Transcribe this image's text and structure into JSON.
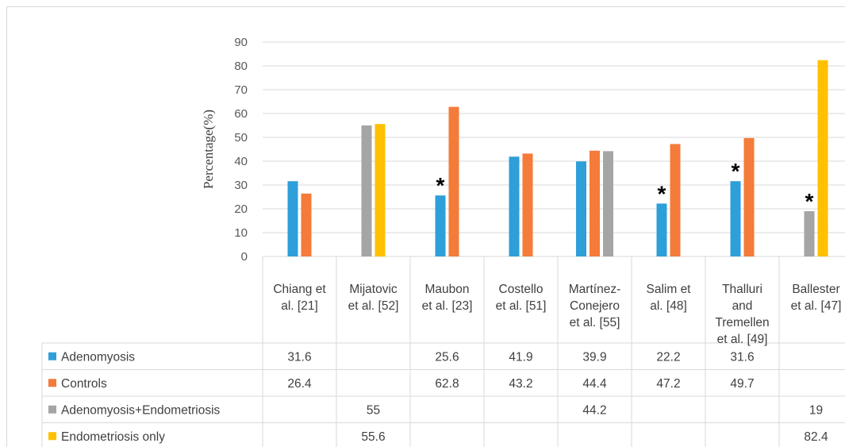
{
  "chart_data": {
    "type": "bar",
    "ylabel": "Percentage(%)",
    "ylim": [
      0,
      90
    ],
    "ytick_step": 10,
    "categories": [
      [
        "Chiang et",
        "al. [21]"
      ],
      [
        "Mijatovic",
        "et al. [52]"
      ],
      [
        "Maubon",
        "et al. [23]"
      ],
      [
        "Costello",
        "et al. [51]"
      ],
      [
        "Martínez-",
        "Conejero",
        "et al. [55]"
      ],
      [
        "Salim et",
        "al. [48]"
      ],
      [
        "Thalluri",
        "and",
        "Tremellen",
        "et al. [49]"
      ],
      [
        "Ballester",
        "et al. [47]"
      ]
    ],
    "series": [
      {
        "name": "Adenomyosis",
        "color": "#2E9FD9",
        "values": [
          31.6,
          null,
          25.6,
          41.9,
          39.9,
          22.2,
          31.6,
          null
        ]
      },
      {
        "name": "Controls",
        "color": "#F47B3A",
        "values": [
          26.4,
          null,
          62.8,
          43.2,
          44.4,
          47.2,
          49.7,
          null
        ]
      },
      {
        "name": "Adenomyosis+Endometriosis",
        "color": "#A5A5A5",
        "values": [
          null,
          55,
          null,
          null,
          44.2,
          null,
          null,
          19
        ]
      },
      {
        "name": "Endometriosis only",
        "color": "#FFC000",
        "values": [
          null,
          55.6,
          null,
          null,
          null,
          null,
          null,
          82.4
        ]
      }
    ],
    "table_values": [
      [
        "31.6",
        "",
        "25.6",
        "41.9",
        "39.9",
        "22.2",
        "31.6",
        ""
      ],
      [
        "26.4",
        "",
        "62.8",
        "43.2",
        "44.4",
        "47.2",
        "49.7",
        ""
      ],
      [
        "",
        "55",
        "",
        "",
        "44.2",
        "",
        "",
        "19"
      ],
      [
        "",
        "55.6",
        "",
        "",
        "",
        "",
        "",
        "82.4"
      ]
    ],
    "significance_marks": [
      {
        "category_index": 2,
        "series_index": 0,
        "symbol": "*"
      },
      {
        "category_index": 5,
        "series_index": 0,
        "symbol": "*"
      },
      {
        "category_index": 6,
        "series_index": 0,
        "symbol": "*"
      },
      {
        "category_index": 7,
        "series_index": 2,
        "symbol": "*"
      }
    ],
    "grid": true,
    "legend": "data-table"
  }
}
